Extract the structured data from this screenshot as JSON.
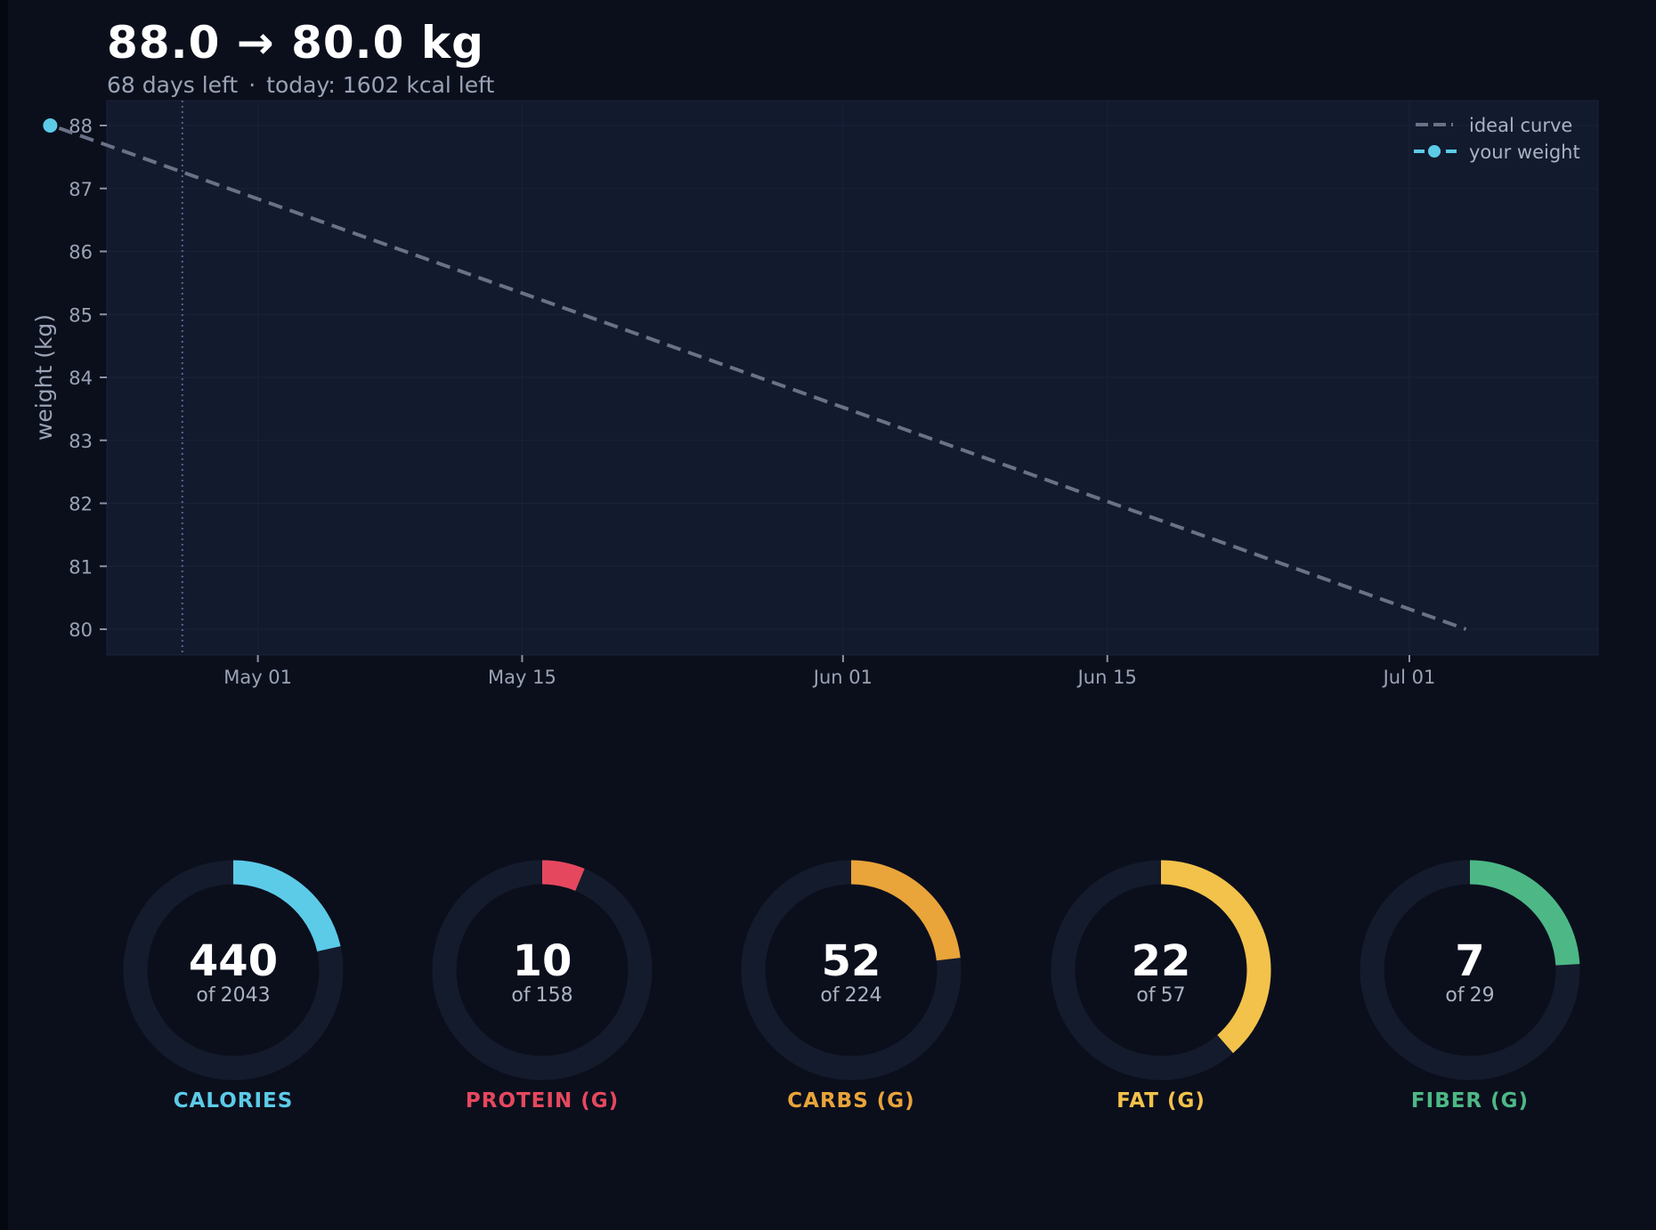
{
  "header": {
    "title": "88.0 → 80.0 kg",
    "days_left": "68 days left",
    "separator": "·",
    "today": "today: 1602 kcal left"
  },
  "chart_data": {
    "type": "line",
    "ylabel": "weight (kg)",
    "ylim": [
      80,
      88
    ],
    "yticks": [
      "80",
      "81",
      "82",
      "83",
      "84",
      "85",
      "86",
      "87",
      "88"
    ],
    "xlim": [
      "2026-04-23",
      "2026-07-11"
    ],
    "xticks": [
      {
        "date": "2026-05-01",
        "label": "May 01"
      },
      {
        "date": "2026-05-15",
        "label": "May 15"
      },
      {
        "date": "2026-06-01",
        "label": "Jun 01"
      },
      {
        "date": "2026-06-15",
        "label": "Jun 15"
      },
      {
        "date": "2026-07-01",
        "label": "Jul 01"
      }
    ],
    "today_marker": "2026-04-27",
    "legend_position": "top-right",
    "series": [
      {
        "name": "ideal curve",
        "style": "dashed",
        "color": "#6b7287",
        "points": [
          {
            "x": "2026-04-20",
            "y": 88.0
          },
          {
            "x": "2026-07-04",
            "y": 80.0
          }
        ]
      },
      {
        "name": "your weight",
        "style": "marker",
        "color": "#5ccbe8",
        "points": [
          {
            "x": "2026-04-20",
            "y": 88.0
          }
        ]
      }
    ]
  },
  "rings": [
    {
      "value": "440",
      "of": "of",
      "target": "2043",
      "label": "CALORIES",
      "color": "#5ccbe8",
      "fraction": 0.215
    },
    {
      "value": "10",
      "of": "of",
      "target": "158",
      "label": "PROTEIN (G)",
      "color": "#e5485e",
      "fraction": 0.063
    },
    {
      "value": "52",
      "of": "of",
      "target": "224",
      "label": "CARBS (G)",
      "color": "#e9a43a",
      "fraction": 0.232
    },
    {
      "value": "22",
      "of": "of",
      "target": "57",
      "label": "FAT (G)",
      "color": "#f2c24a",
      "fraction": 0.386
    },
    {
      "value": "7",
      "of": "of",
      "target": "29",
      "label": "FIBER (G)",
      "color": "#4db886",
      "fraction": 0.241
    }
  ]
}
